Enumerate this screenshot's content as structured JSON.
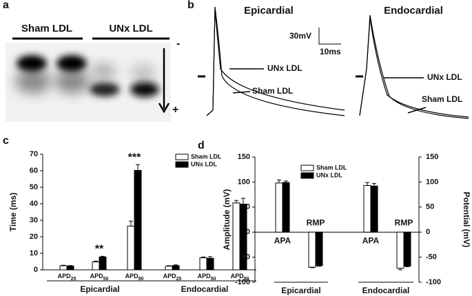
{
  "panels": {
    "a": {
      "label": "a",
      "lanes": [
        "Sham LDL",
        "UNx LDL"
      ],
      "minus": "-",
      "plus": "+"
    },
    "b": {
      "label": "b",
      "titles": [
        "Epicardial",
        "Endocardial"
      ],
      "scale_v": "30mV",
      "scale_t": "10ms",
      "trace_labels": [
        [
          "UNx LDL",
          "Sham LDL"
        ],
        [
          "UNx LDL",
          "Sham LDL"
        ]
      ]
    },
    "c": {
      "label": "c"
    },
    "d": {
      "label": "d"
    }
  },
  "chart_data": [
    {
      "type": "bar",
      "ylabel": "Time (ms)",
      "categories": [
        "APD25",
        "APD50",
        "APD90",
        "APD25",
        "APD50",
        "APD90"
      ],
      "groups": [
        "Epicardial",
        "Endocardial"
      ],
      "series": [
        {
          "name": "Sham LDL",
          "color": "#ffffff",
          "values": [
            2.5,
            4.8,
            26.5,
            2.2,
            7.3,
            40.5
          ],
          "errors": [
            0.3,
            0.5,
            3,
            0.3,
            0.5,
            1.5
          ]
        },
        {
          "name": "UNx LDL",
          "color": "#000000",
          "values": [
            2.3,
            7.8,
            60.2,
            2.6,
            7.0,
            39.8
          ],
          "errors": [
            0.3,
            0.4,
            3.5,
            0.4,
            1,
            3.5
          ]
        }
      ],
      "ylim": [
        0,
        70
      ],
      "yticks": [
        0,
        10,
        20,
        30,
        40,
        50,
        60,
        70
      ],
      "annotations": [
        {
          "text": "**",
          "category": 1
        },
        {
          "text": "***",
          "category": 2
        }
      ],
      "legend": "upper right"
    },
    {
      "type": "bar",
      "ylabel": "Amplitude (mV)",
      "y2label": "Potential (mV)",
      "categories": [
        "APA",
        "RMP",
        "APA",
        "RMP"
      ],
      "groups": [
        "Epicardial",
        "Endocardial"
      ],
      "series": [
        {
          "name": "Sham LDL",
          "color": "#ffffff",
          "values": [
            98,
            -70,
            93,
            -72
          ],
          "errors": [
            6,
            1,
            6,
            3
          ]
        },
        {
          "name": "UNx LDL",
          "color": "#000000",
          "values": [
            99,
            -67,
            92,
            -68
          ],
          "errors": [
            3,
            1,
            5,
            1
          ]
        }
      ],
      "ylim": [
        -100,
        150
      ],
      "yticks": [
        -100,
        -50,
        0,
        50,
        100,
        150
      ],
      "y2lim": [
        -100,
        150
      ],
      "y2ticks": [
        -100,
        -50,
        0,
        50,
        100,
        150
      ],
      "legend": "upper center"
    }
  ]
}
